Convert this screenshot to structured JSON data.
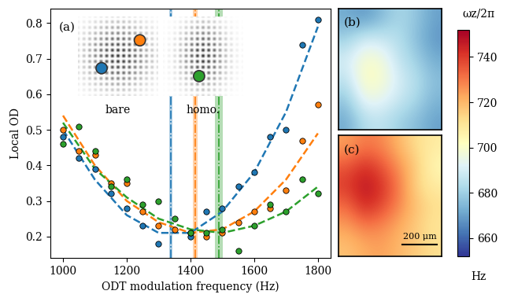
{
  "chart_data": [
    {
      "type": "scatter",
      "panel": "(a)",
      "xlabel": "ODT modulation frequency (Hz)",
      "ylabel": "Local OD",
      "image_labels": [
        "bare",
        "homo."
      ],
      "xlim": [
        960,
        1840
      ],
      "xticks": [
        1000,
        1200,
        1400,
        1600,
        1800
      ],
      "ylim": [
        0.14,
        0.84
      ],
      "yticks": [
        0.2,
        0.3,
        0.4,
        0.5,
        0.6,
        0.7,
        0.8
      ],
      "series": [
        {
          "type": "scatter",
          "color": "#1f77b4",
          "marker": "o",
          "x": [
            1000,
            1050,
            1100,
            1150,
            1200,
            1250,
            1300,
            1400,
            1450,
            1500,
            1550,
            1600,
            1650,
            1700,
            1750,
            1800
          ],
          "values": [
            0.48,
            0.42,
            0.39,
            0.32,
            0.28,
            0.23,
            0.18,
            0.2,
            0.27,
            0.28,
            0.34,
            0.38,
            0.48,
            0.5,
            0.74,
            0.81
          ]
        },
        {
          "type": "scatter",
          "color": "#ff7f0e",
          "marker": "o",
          "x": [
            1000,
            1050,
            1100,
            1150,
            1200,
            1250,
            1300,
            1350,
            1400,
            1450,
            1500,
            1550,
            1600,
            1650,
            1700,
            1750,
            1800
          ],
          "values": [
            0.5,
            0.44,
            0.43,
            0.35,
            0.35,
            0.27,
            0.23,
            0.22,
            0.21,
            0.2,
            0.21,
            0.24,
            0.27,
            0.28,
            0.33,
            0.47,
            0.57
          ]
        },
        {
          "type": "scatter",
          "color": "#2ca02c",
          "marker": "o",
          "x": [
            1000,
            1050,
            1100,
            1150,
            1200,
            1250,
            1300,
            1350,
            1400,
            1450,
            1500,
            1550,
            1600,
            1650,
            1700,
            1750,
            1800
          ],
          "values": [
            0.46,
            0.51,
            0.44,
            0.34,
            0.36,
            0.29,
            0.3,
            0.25,
            0.21,
            0.21,
            0.22,
            0.16,
            0.23,
            0.29,
            0.27,
            0.36,
            0.32
          ]
        },
        {
          "type": "line",
          "color": "#1f77b4",
          "line_style": "dashed",
          "x": [
            1000,
            1100,
            1200,
            1300,
            1400,
            1500,
            1600,
            1700,
            1800
          ],
          "values": [
            0.5,
            0.36,
            0.26,
            0.21,
            0.21,
            0.27,
            0.38,
            0.55,
            0.79
          ]
        },
        {
          "type": "line",
          "color": "#ff7f0e",
          "line_style": "dashed",
          "x": [
            1000,
            1100,
            1200,
            1300,
            1400,
            1500,
            1600,
            1700,
            1800
          ],
          "values": [
            0.54,
            0.4,
            0.3,
            0.24,
            0.21,
            0.22,
            0.27,
            0.36,
            0.49
          ]
        },
        {
          "type": "line",
          "color": "#2ca02c",
          "line_style": "dashed",
          "x": [
            1000,
            1100,
            1200,
            1300,
            1400,
            1500,
            1600,
            1700,
            1800
          ],
          "values": [
            0.52,
            0.39,
            0.31,
            0.25,
            0.22,
            0.21,
            0.23,
            0.27,
            0.34
          ]
        }
      ],
      "vlines": [
        {
          "x": 1338,
          "band": [
            1333,
            1343
          ],
          "color": "#1f77b4"
        },
        {
          "x": 1415,
          "band": [
            1408,
            1422
          ],
          "color": "#ff7f0e"
        },
        {
          "x": 1490,
          "band": [
            1478,
            1502
          ],
          "color": "#2ca02c"
        }
      ]
    },
    {
      "type": "heatmap",
      "panel": "(b)",
      "tick_labels": false,
      "cells": [
        [
          672,
          668,
          675,
          682,
          678,
          670
        ],
        [
          680,
          690,
          688,
          684,
          676,
          668
        ],
        [
          690,
          700,
          698,
          686,
          680,
          672
        ],
        [
          686,
          702,
          700,
          690,
          684,
          676
        ],
        [
          678,
          696,
          694,
          688,
          682,
          674
        ],
        [
          672,
          684,
          686,
          680,
          676,
          670
        ]
      ]
    },
    {
      "type": "heatmap",
      "panel": "(c)",
      "tick_labels": false,
      "scale_bar": "200 μm",
      "cells": [
        [
          724,
          730,
          728,
          720,
          712,
          708
        ],
        [
          735,
          742,
          736,
          726,
          716,
          704
        ],
        [
          740,
          748,
          742,
          730,
          714,
          708
        ],
        [
          732,
          744,
          738,
          728,
          718,
          712
        ],
        [
          724,
          730,
          728,
          722,
          716,
          710
        ],
        [
          718,
          722,
          724,
          720,
          716,
          712
        ]
      ],
      "colorbar": {
        "range": [
          652,
          752
        ],
        "ticks": [
          660,
          680,
          700,
          720,
          740
        ],
        "label": "ωz/2π",
        "unit": "Hz"
      }
    }
  ]
}
